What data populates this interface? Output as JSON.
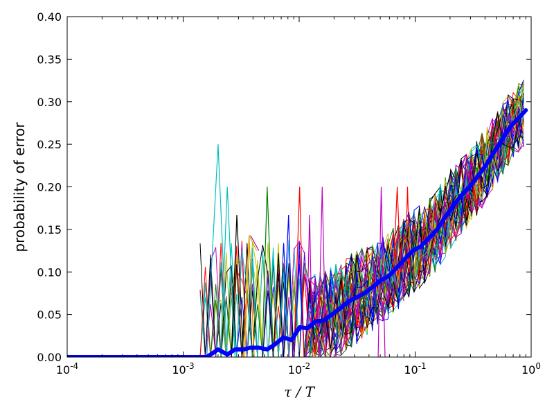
{
  "chart_data": {
    "type": "line",
    "title": "",
    "xlabel": "τ / T",
    "ylabel": "probability of error",
    "xscale": "log",
    "xlim": [
      0.0001,
      1
    ],
    "ylim": [
      0,
      0.4
    ],
    "grid": false,
    "legend": "none",
    "x_tick_labels": [
      {
        "base": "10",
        "exp": "-4",
        "value": 0.0001
      },
      {
        "base": "10",
        "exp": "-3",
        "value": 0.001
      },
      {
        "base": "10",
        "exp": "-2",
        "value": 0.01
      },
      {
        "base": "10",
        "exp": "-1",
        "value": 0.1
      },
      {
        "base": "10",
        "exp": "0",
        "value": 1
      }
    ],
    "y_tick_labels": [
      "0.00",
      "0.05",
      "0.10",
      "0.15",
      "0.20",
      "0.25",
      "0.30",
      "0.35",
      "0.40"
    ],
    "y_ticks": [
      0,
      0.05,
      0.1,
      0.15,
      0.2,
      0.25,
      0.3,
      0.35,
      0.4
    ],
    "thin_series_colors": [
      "#0000ff",
      "#008000",
      "#ff0000",
      "#00bfbf",
      "#bf00bf",
      "#bfbf00",
      "#000000"
    ],
    "thin_series_count": 50,
    "mean_series": {
      "color": "#0000ff",
      "x": [
        0.0001,
        0.0003,
        0.001,
        0.0016,
        0.002,
        0.0024,
        0.0028,
        0.0033,
        0.0038,
        0.0045,
        0.0053,
        0.0062,
        0.0073,
        0.0086,
        0.0101,
        0.0118,
        0.0139,
        0.0163,
        0.0192,
        0.0225,
        0.0265,
        0.0311,
        0.0365,
        0.0428,
        0.0503,
        0.059,
        0.0693,
        0.0814,
        0.0955,
        0.112,
        0.132,
        0.155,
        0.182,
        0.213,
        0.25,
        0.294,
        0.345,
        0.405,
        0.475,
        0.558,
        0.655,
        0.768,
        0.9
      ],
      "y": [
        0,
        0,
        0,
        0,
        0.009,
        0.003,
        0.009,
        0.009,
        0.011,
        0.011,
        0.009,
        0.015,
        0.023,
        0.02,
        0.035,
        0.034,
        0.042,
        0.043,
        0.05,
        0.057,
        0.065,
        0.07,
        0.075,
        0.082,
        0.09,
        0.095,
        0.105,
        0.115,
        0.125,
        0.13,
        0.14,
        0.15,
        0.165,
        0.178,
        0.19,
        0.2,
        0.212,
        0.225,
        0.24,
        0.255,
        0.27,
        0.28,
        0.29
      ]
    },
    "spike_series": [
      {
        "color": "#00bfbf",
        "x": [
          0.0016,
          0.002,
          0.0024
        ],
        "y": [
          0,
          0.25,
          0
        ]
      },
      {
        "color": "#00bfbf",
        "x": [
          0.0021,
          0.0024,
          0.0028
        ],
        "y": [
          0,
          0.2,
          0
        ]
      },
      {
        "color": "#000000",
        "x": [
          0.0026,
          0.0029,
          0.0033
        ],
        "y": [
          0,
          0.167,
          0
        ]
      },
      {
        "color": "#ff8000",
        "x": [
          0.0033,
          0.0037,
          0.0041
        ],
        "y": [
          0,
          0.143,
          0
        ]
      },
      {
        "color": "#bfbf00",
        "x": [
          0.0034,
          0.0037,
          0.0043
        ],
        "y": [
          0,
          0.143,
          0.125
        ]
      },
      {
        "color": "#bf00bf",
        "x": [
          0.0038,
          0.0045
        ],
        "y": [
          0.143,
          0.125
        ]
      },
      {
        "color": "#008000",
        "x": [
          0.0048,
          0.0053,
          0.006
        ],
        "y": [
          0,
          0.2,
          0
        ]
      },
      {
        "color": "#ff0000",
        "x": [
          0.009,
          0.0101,
          0.011
        ],
        "y": [
          0,
          0.2,
          0
        ]
      },
      {
        "color": "#0000ff",
        "x": [
          0.0072,
          0.0081,
          0.0088
        ],
        "y": [
          0,
          0.167,
          0
        ]
      },
      {
        "color": "#bf00bf",
        "x": [
          0.0146,
          0.0158,
          0.017
        ],
        "y": [
          0,
          0.2,
          0
        ]
      },
      {
        "color": "#bf00bf",
        "x": [
          0.0115,
          0.0123,
          0.013
        ],
        "y": [
          0,
          0.167,
          0
        ]
      },
      {
        "color": "#bf00bf",
        "x": [
          0.048,
          0.051,
          0.055
        ],
        "y": [
          0,
          0.2,
          0
        ]
      },
      {
        "color": "#ff0000",
        "x": [
          0.065,
          0.07,
          0.075
        ],
        "y": [
          0.1,
          0.2,
          0.1
        ]
      },
      {
        "color": "#ff0000",
        "x": [
          0.082,
          0.086,
          0.09
        ],
        "y": [
          0.1,
          0.2,
          0.1
        ]
      }
    ]
  }
}
